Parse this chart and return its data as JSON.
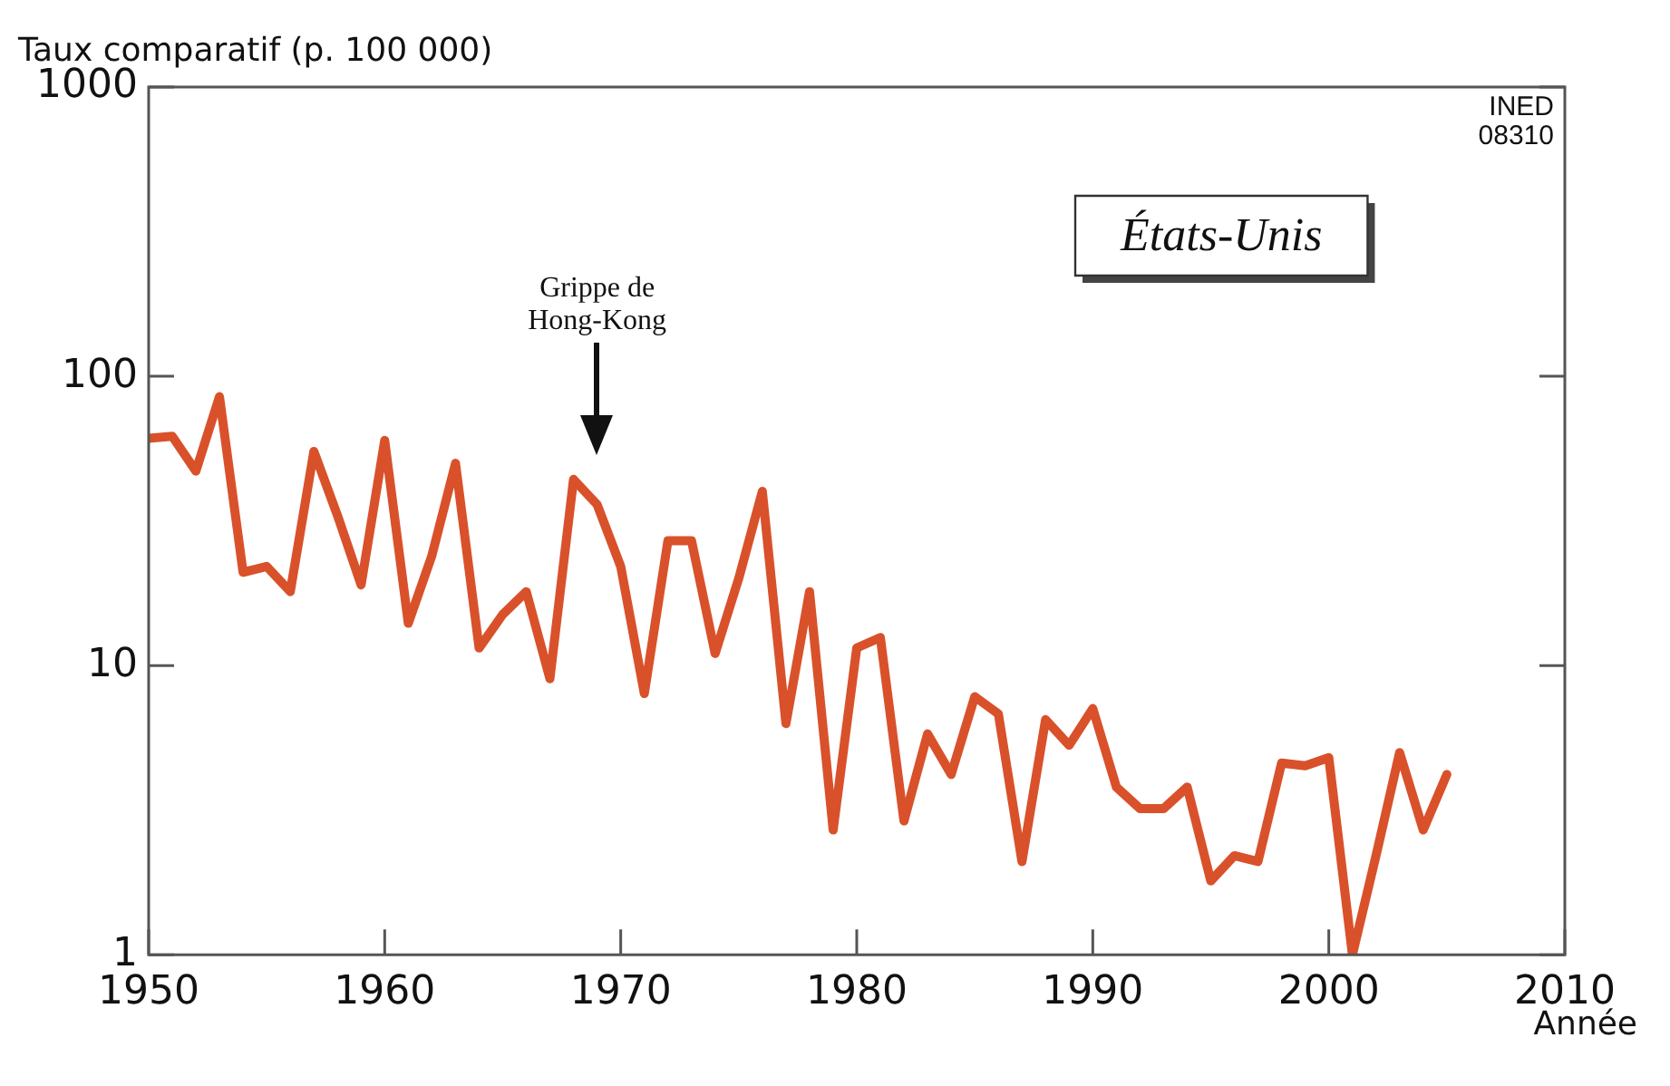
{
  "chart_data": {
    "type": "line",
    "ylabel": "Taux comparatif (p. 100 000)",
    "xlabel": "Année",
    "subtitle": "États-Unis",
    "annotations": [
      "Grippe de Hong-Kong",
      "INED 08310"
    ],
    "x": [
      1950,
      1951,
      1952,
      1953,
      1954,
      1955,
      1956,
      1957,
      1958,
      1959,
      1960,
      1961,
      1962,
      1963,
      1964,
      1965,
      1966,
      1967,
      1968,
      1969,
      1970,
      1971,
      1972,
      1973,
      1974,
      1975,
      1976,
      1977,
      1978,
      1979,
      1980,
      1981,
      1982,
      1983,
      1984,
      1985,
      1986,
      1987,
      1988,
      1989,
      1990,
      1991,
      1992,
      1993,
      1994,
      1995,
      1996,
      1997,
      1998,
      1999,
      2000,
      2001,
      2002,
      2003,
      2004,
      2005
    ],
    "series": [
      {
        "color": "#d9512a",
        "values": [
          61,
          62,
          47,
          85,
          21,
          22,
          18,
          55,
          33,
          19,
          60,
          14,
          24,
          50,
          11.5,
          15,
          18,
          9,
          44,
          36,
          22,
          8,
          27,
          27,
          11,
          20,
          40,
          6.3,
          18,
          2.7,
          11.5,
          12.5,
          2.9,
          5.8,
          4.2,
          7.8,
          6.8,
          2.1,
          6.5,
          5.3,
          7.1,
          3.8,
          3.2,
          3.2,
          3.8,
          1.8,
          2.2,
          2.1,
          4.6,
          4.5,
          4.8,
          1,
          2.2,
          5,
          2.7,
          4.2
        ]
      }
    ],
    "xlim": [
      1950,
      2010
    ],
    "xticks": [
      1950,
      1960,
      1970,
      1980,
      1990,
      2000,
      2010
    ],
    "ylim": [
      1,
      1000
    ],
    "yticks": [
      1,
      10,
      100,
      1000
    ],
    "log": true,
    "grid": false,
    "legend": false,
    "marker": "none",
    "line_style": "solid"
  }
}
